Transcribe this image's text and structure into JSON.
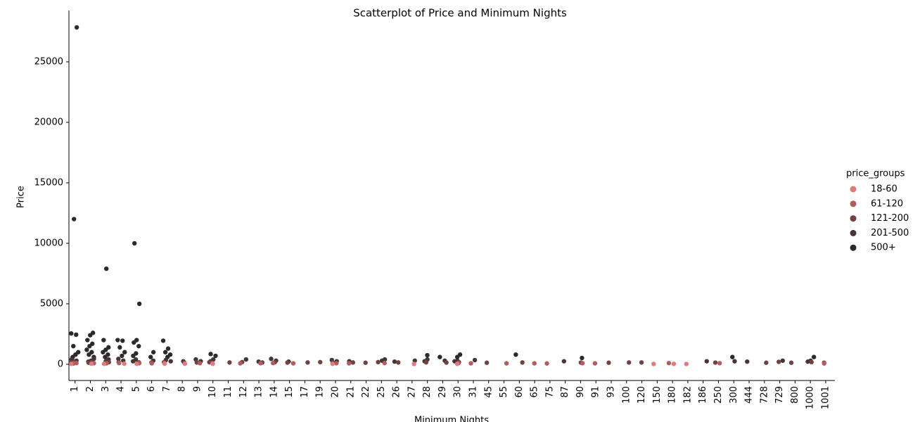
{
  "chart_data": {
    "type": "strip",
    "title": "Scatterplot of Price and Minimum Nights",
    "x_label": "Minimum Nights",
    "y_label": "Price",
    "legend_title": "price_groups",
    "legend": "right",
    "categories": [
      "1",
      "2",
      "3",
      "4",
      "5",
      "6",
      "7",
      "8",
      "9",
      "10",
      "11",
      "12",
      "13",
      "14",
      "15",
      "17",
      "19",
      "20",
      "21",
      "22",
      "25",
      "26",
      "27",
      "28",
      "29",
      "30",
      "31",
      "45",
      "55",
      "60",
      "65",
      "75",
      "87",
      "90",
      "91",
      "93",
      "100",
      "120",
      "150",
      "180",
      "182",
      "186",
      "250",
      "300",
      "444",
      "728",
      "729",
      "800",
      "1000",
      "1001"
    ],
    "ylim": [
      -1340,
      29240
    ],
    "yticks": [
      0,
      5000,
      10000,
      15000,
      20000,
      25000
    ],
    "series": [
      {
        "name": "18-60",
        "color": "#e07b7b",
        "x": [
          "1",
          "2",
          "3",
          "4",
          "5",
          "7",
          "8",
          "10",
          "20",
          "27",
          "30",
          "150",
          "180",
          "182"
        ],
        "values": [
          40,
          50,
          40,
          50,
          40,
          50,
          50,
          40,
          40,
          30,
          40,
          30,
          40,
          30
        ]
      },
      {
        "name": "61-120",
        "color": "#b35c5c",
        "x": [
          "1",
          "1",
          "2",
          "3",
          "4",
          "5",
          "6",
          "7",
          "9",
          "10",
          "12",
          "13",
          "14",
          "15",
          "20",
          "21",
          "25",
          "30",
          "31",
          "55",
          "65",
          "75",
          "90",
          "91",
          "180",
          "250",
          "1001"
        ],
        "values": [
          100,
          70,
          90,
          80,
          100,
          90,
          80,
          100,
          90,
          100,
          80,
          90,
          100,
          80,
          90,
          80,
          100,
          90,
          80,
          80,
          80,
          70,
          90,
          80,
          100,
          90,
          70
        ]
      },
      {
        "name": "121-200",
        "color": "#6f4343",
        "x": [
          "1",
          "1",
          "2",
          "2",
          "3",
          "3",
          "4",
          "5",
          "6",
          "7",
          "8",
          "9",
          "10",
          "11",
          "12",
          "13",
          "14",
          "15",
          "17",
          "19",
          "20",
          "21",
          "22",
          "25",
          "26",
          "28",
          "29",
          "30",
          "45",
          "60",
          "90",
          "93",
          "100",
          "120",
          "250",
          "728",
          "729",
          "800",
          "1000",
          "1001"
        ],
        "values": [
          180,
          150,
          190,
          130,
          170,
          140,
          180,
          160,
          150,
          170,
          150,
          150,
          170,
          150,
          180,
          150,
          170,
          140,
          150,
          180,
          160,
          150,
          130,
          180,
          150,
          160,
          140,
          170,
          130,
          150,
          140,
          130,
          150,
          150,
          140,
          130,
          200,
          130,
          180,
          130
        ]
      },
      {
        "name": "201-500",
        "color": "#473535",
        "x": [
          "1",
          "1",
          "1",
          "2",
          "2",
          "2",
          "3",
          "3",
          "4",
          "4",
          "5",
          "5",
          "6",
          "7",
          "7",
          "8",
          "9",
          "9",
          "10",
          "10",
          "12",
          "13",
          "14",
          "14",
          "15",
          "20",
          "20",
          "21",
          "25",
          "25",
          "26",
          "27",
          "28",
          "28",
          "29",
          "30",
          "30",
          "31",
          "87",
          "186",
          "300",
          "444",
          "729",
          "1000",
          "1000"
        ],
        "values": [
          400,
          300,
          250,
          450,
          300,
          220,
          400,
          250,
          450,
          300,
          400,
          250,
          300,
          350,
          250,
          250,
          400,
          250,
          400,
          250,
          400,
          220,
          450,
          300,
          220,
          350,
          250,
          250,
          400,
          300,
          220,
          300,
          400,
          250,
          300,
          300,
          250,
          350,
          250,
          250,
          250,
          220,
          300,
          300,
          220
        ]
      },
      {
        "name": "500+",
        "color": "#2b2b2b",
        "x": [
          "1",
          "1",
          "1",
          "1",
          "1",
          "1",
          "1",
          "1",
          "2",
          "2",
          "2",
          "2",
          "2",
          "2",
          "2",
          "2",
          "2",
          "3",
          "3",
          "3",
          "3",
          "3",
          "3",
          "3",
          "4",
          "4",
          "4",
          "4",
          "4",
          "5",
          "5",
          "5",
          "5",
          "5",
          "5",
          "5",
          "6",
          "6",
          "7",
          "7",
          "7",
          "7",
          "7",
          "10",
          "10",
          "28",
          "29",
          "30",
          "30",
          "60",
          "90",
          "300",
          "1000"
        ],
        "values": [
          27850,
          12000,
          2550,
          2450,
          1500,
          1000,
          800,
          600,
          2600,
          2400,
          2000,
          1700,
          1500,
          1200,
          1000,
          800,
          600,
          7900,
          2000,
          1400,
          1200,
          1000,
          800,
          600,
          2000,
          1950,
          1400,
          1000,
          700,
          10000,
          5000,
          2000,
          1800,
          1500,
          900,
          700,
          1000,
          600,
          1950,
          1300,
          1000,
          800,
          600,
          850,
          700,
          750,
          600,
          800,
          600,
          800,
          520,
          600,
          600
        ]
      }
    ]
  }
}
